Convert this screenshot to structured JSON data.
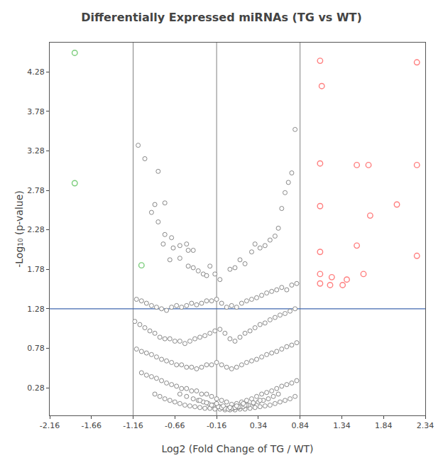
{
  "chart_data": {
    "type": "scatter",
    "title": "Differentially Expressed miRNAs (TG vs WT)",
    "xlabel": "Log2 (Fold Change of TG / WT)",
    "ylabel": "-Log₁₀ (p-value)",
    "xlim": [
      -2.16,
      2.34
    ],
    "ylim": [
      -0.07,
      4.65
    ],
    "xticks": [
      -2.16,
      -1.66,
      -1.16,
      -0.66,
      -0.16,
      0.34,
      0.84,
      1.34,
      1.84,
      2.34
    ],
    "yticks": [
      0.28,
      0.78,
      1.28,
      1.78,
      2.28,
      2.78,
      3.28,
      3.78,
      4.28
    ],
    "grid": false,
    "marker": "circle",
    "reference_lines": [
      {
        "axis": "x",
        "value": -1.16,
        "color": "#808080"
      },
      {
        "axis": "x",
        "value": -0.16,
        "color": "#808080"
      },
      {
        "axis": "x",
        "value": 0.84,
        "color": "#808080"
      },
      {
        "axis": "y",
        "value": 1.28,
        "color": "#4169b0"
      }
    ],
    "series": [
      {
        "color": "#888888",
        "x": [
          -1.1,
          -0.86,
          -1.02,
          -0.9,
          -0.78,
          -0.94,
          -0.86,
          -0.78,
          -0.7,
          -0.8,
          -0.68,
          -0.6,
          -0.52,
          -0.72,
          -0.6,
          -0.5,
          -0.44,
          -0.5,
          -0.44,
          -0.38,
          -0.32,
          -0.28,
          -0.24,
          -0.18,
          -0.12,
          0.0,
          0.06,
          0.12,
          0.18,
          0.26,
          0.3,
          0.36,
          0.42,
          0.48,
          0.54,
          0.58,
          0.62,
          0.66,
          0.7,
          0.74,
          0.78,
          -1.12,
          -1.06,
          -1.0,
          -0.94,
          -0.88,
          -0.82,
          -0.76,
          -0.7,
          -0.64,
          -0.58,
          -0.52,
          -0.46,
          -0.4,
          -0.34,
          -0.28,
          -0.22,
          -0.16,
          -0.1,
          -0.04,
          0.02,
          0.08,
          0.14,
          0.2,
          0.26,
          0.32,
          0.38,
          0.44,
          0.5,
          0.56,
          0.62,
          0.68,
          0.74,
          0.8,
          -1.14,
          -1.08,
          -1.02,
          -0.96,
          -0.9,
          -0.84,
          -0.78,
          -0.72,
          -0.66,
          -0.6,
          -0.54,
          -0.48,
          -0.42,
          -0.36,
          -0.3,
          -0.24,
          -0.18,
          -0.12,
          -0.06,
          0.0,
          0.06,
          0.12,
          0.18,
          0.24,
          0.3,
          0.36,
          0.42,
          0.48,
          0.54,
          0.6,
          0.66,
          0.72,
          0.78,
          -1.12,
          -1.06,
          -1.0,
          -0.94,
          -0.88,
          -0.82,
          -0.76,
          -0.7,
          -0.64,
          -0.58,
          -0.52,
          -0.46,
          -0.4,
          -0.34,
          -0.28,
          -0.22,
          -0.16,
          -0.1,
          -0.04,
          0.02,
          0.08,
          0.14,
          0.2,
          0.26,
          0.32,
          0.38,
          0.44,
          0.5,
          0.56,
          0.62,
          0.68,
          0.74,
          0.8,
          -1.06,
          -1.0,
          -0.94,
          -0.88,
          -0.82,
          -0.76,
          -0.7,
          -0.64,
          -0.58,
          -0.52,
          -0.46,
          -0.4,
          -0.34,
          -0.28,
          -0.22,
          -0.16,
          -0.1,
          -0.04,
          0.02,
          0.08,
          0.14,
          0.2,
          0.26,
          0.32,
          0.38,
          0.44,
          0.5,
          0.56,
          0.62,
          0.68,
          0.74,
          0.8,
          -0.9,
          -0.84,
          -0.78,
          -0.72,
          -0.66,
          -0.6,
          -0.54,
          -0.48,
          -0.42,
          -0.36,
          -0.3,
          -0.24,
          -0.18,
          -0.12,
          -0.06,
          0.0,
          0.06,
          0.12,
          0.18,
          0.24,
          0.3,
          0.36,
          0.42,
          0.48,
          0.54,
          0.6,
          0.66,
          0.72,
          0.78,
          -0.6,
          -0.52,
          -0.44,
          -0.38,
          -0.32,
          -0.26,
          -0.2,
          -0.14,
          -0.08,
          -0.02,
          0.04,
          0.1,
          0.16,
          0.22,
          0.28,
          0.34,
          0.4,
          0.46,
          0.52,
          0.58,
          -0.36,
          -0.28,
          -0.2,
          -0.12,
          -0.04,
          0.04,
          0.12,
          0.2,
          0.28,
          0.36,
          -0.22,
          -0.14,
          -0.06,
          0.02,
          0.1,
          0.18,
          -0.1,
          -0.02,
          0.06,
          -0.16,
          -0.08,
          0.0,
          0.08,
          0.16
        ],
        "values": [
          3.35,
          3.02,
          3.18,
          2.6,
          2.62,
          2.5,
          2.38,
          2.22,
          2.18,
          2.1,
          2.05,
          2.08,
          2.1,
          1.9,
          1.92,
          2.02,
          2.02,
          1.82,
          1.8,
          1.76,
          1.72,
          1.7,
          1.82,
          1.72,
          1.65,
          1.78,
          1.8,
          1.9,
          1.85,
          2.0,
          2.1,
          2.05,
          2.08,
          2.15,
          2.2,
          2.3,
          2.55,
          2.75,
          2.88,
          3.0,
          3.55,
          1.4,
          1.38,
          1.35,
          1.32,
          1.3,
          1.28,
          1.26,
          1.3,
          1.32,
          1.3,
          1.32,
          1.35,
          1.33,
          1.35,
          1.38,
          1.38,
          1.4,
          1.35,
          1.3,
          1.32,
          1.3,
          1.35,
          1.38,
          1.4,
          1.42,
          1.45,
          1.48,
          1.5,
          1.52,
          1.55,
          1.52,
          1.58,
          1.6,
          1.12,
          1.08,
          1.04,
          1.0,
          0.97,
          0.92,
          0.9,
          0.9,
          0.87,
          0.87,
          0.84,
          0.87,
          0.9,
          0.92,
          0.94,
          0.97,
          1.0,
          1.02,
          0.97,
          0.9,
          0.87,
          0.92,
          0.97,
          1.0,
          1.04,
          1.08,
          1.1,
          1.14,
          1.17,
          1.2,
          1.22,
          1.25,
          1.28,
          0.77,
          0.74,
          0.72,
          0.7,
          0.67,
          0.64,
          0.62,
          0.6,
          0.57,
          0.57,
          0.54,
          0.54,
          0.52,
          0.54,
          0.57,
          0.57,
          0.6,
          0.57,
          0.54,
          0.52,
          0.54,
          0.57,
          0.6,
          0.62,
          0.64,
          0.67,
          0.7,
          0.72,
          0.74,
          0.77,
          0.8,
          0.82,
          0.85,
          0.47,
          0.44,
          0.42,
          0.4,
          0.37,
          0.34,
          0.32,
          0.3,
          0.27,
          0.27,
          0.24,
          0.24,
          0.2,
          0.2,
          0.17,
          0.14,
          0.12,
          0.1,
          0.07,
          0.08,
          0.1,
          0.12,
          0.14,
          0.17,
          0.2,
          0.22,
          0.24,
          0.27,
          0.3,
          0.32,
          0.34,
          0.37,
          0.2,
          0.17,
          0.14,
          0.12,
          0.1,
          0.08,
          0.06,
          0.05,
          0.04,
          0.03,
          0.02,
          0.02,
          0.01,
          0.01,
          0.0,
          0.0,
          0.0,
          0.01,
          0.01,
          0.02,
          0.03,
          0.04,
          0.05,
          0.06,
          0.08,
          0.1,
          0.12,
          0.14,
          0.17,
          0.2,
          0.17,
          0.14,
          0.12,
          0.1,
          0.08,
          0.06,
          0.04,
          0.03,
          0.02,
          0.02,
          0.03,
          0.04,
          0.06,
          0.08,
          0.1,
          0.12,
          0.14,
          0.17,
          0.2,
          0.12,
          0.09,
          0.06,
          0.04,
          0.02,
          0.02,
          0.04,
          0.06,
          0.09,
          0.12,
          0.06,
          0.04,
          0.02,
          0.02,
          0.04,
          0.06,
          0.03,
          0.01,
          0.03,
          0.08,
          0.05,
          0.03,
          0.05,
          0.08
        ]
      },
      {
        "color": "#7CCD7C",
        "x": [
          -1.86,
          -1.86,
          -1.06
        ],
        "values": [
          4.52,
          2.87,
          1.83
        ]
      },
      {
        "color": "#FF8080",
        "x": [
          1.08,
          1.1,
          2.24,
          1.08,
          1.52,
          1.66,
          2.24,
          1.08,
          1.68,
          2.0,
          1.08,
          1.52,
          2.24,
          1.08,
          1.22,
          1.4,
          1.6,
          1.08,
          1.2,
          1.35
        ],
        "values": [
          4.42,
          4.1,
          4.4,
          3.12,
          3.1,
          3.1,
          3.1,
          2.58,
          2.46,
          2.6,
          2.0,
          2.08,
          1.95,
          1.72,
          1.68,
          1.65,
          1.72,
          1.6,
          1.58,
          1.58
        ]
      }
    ]
  }
}
